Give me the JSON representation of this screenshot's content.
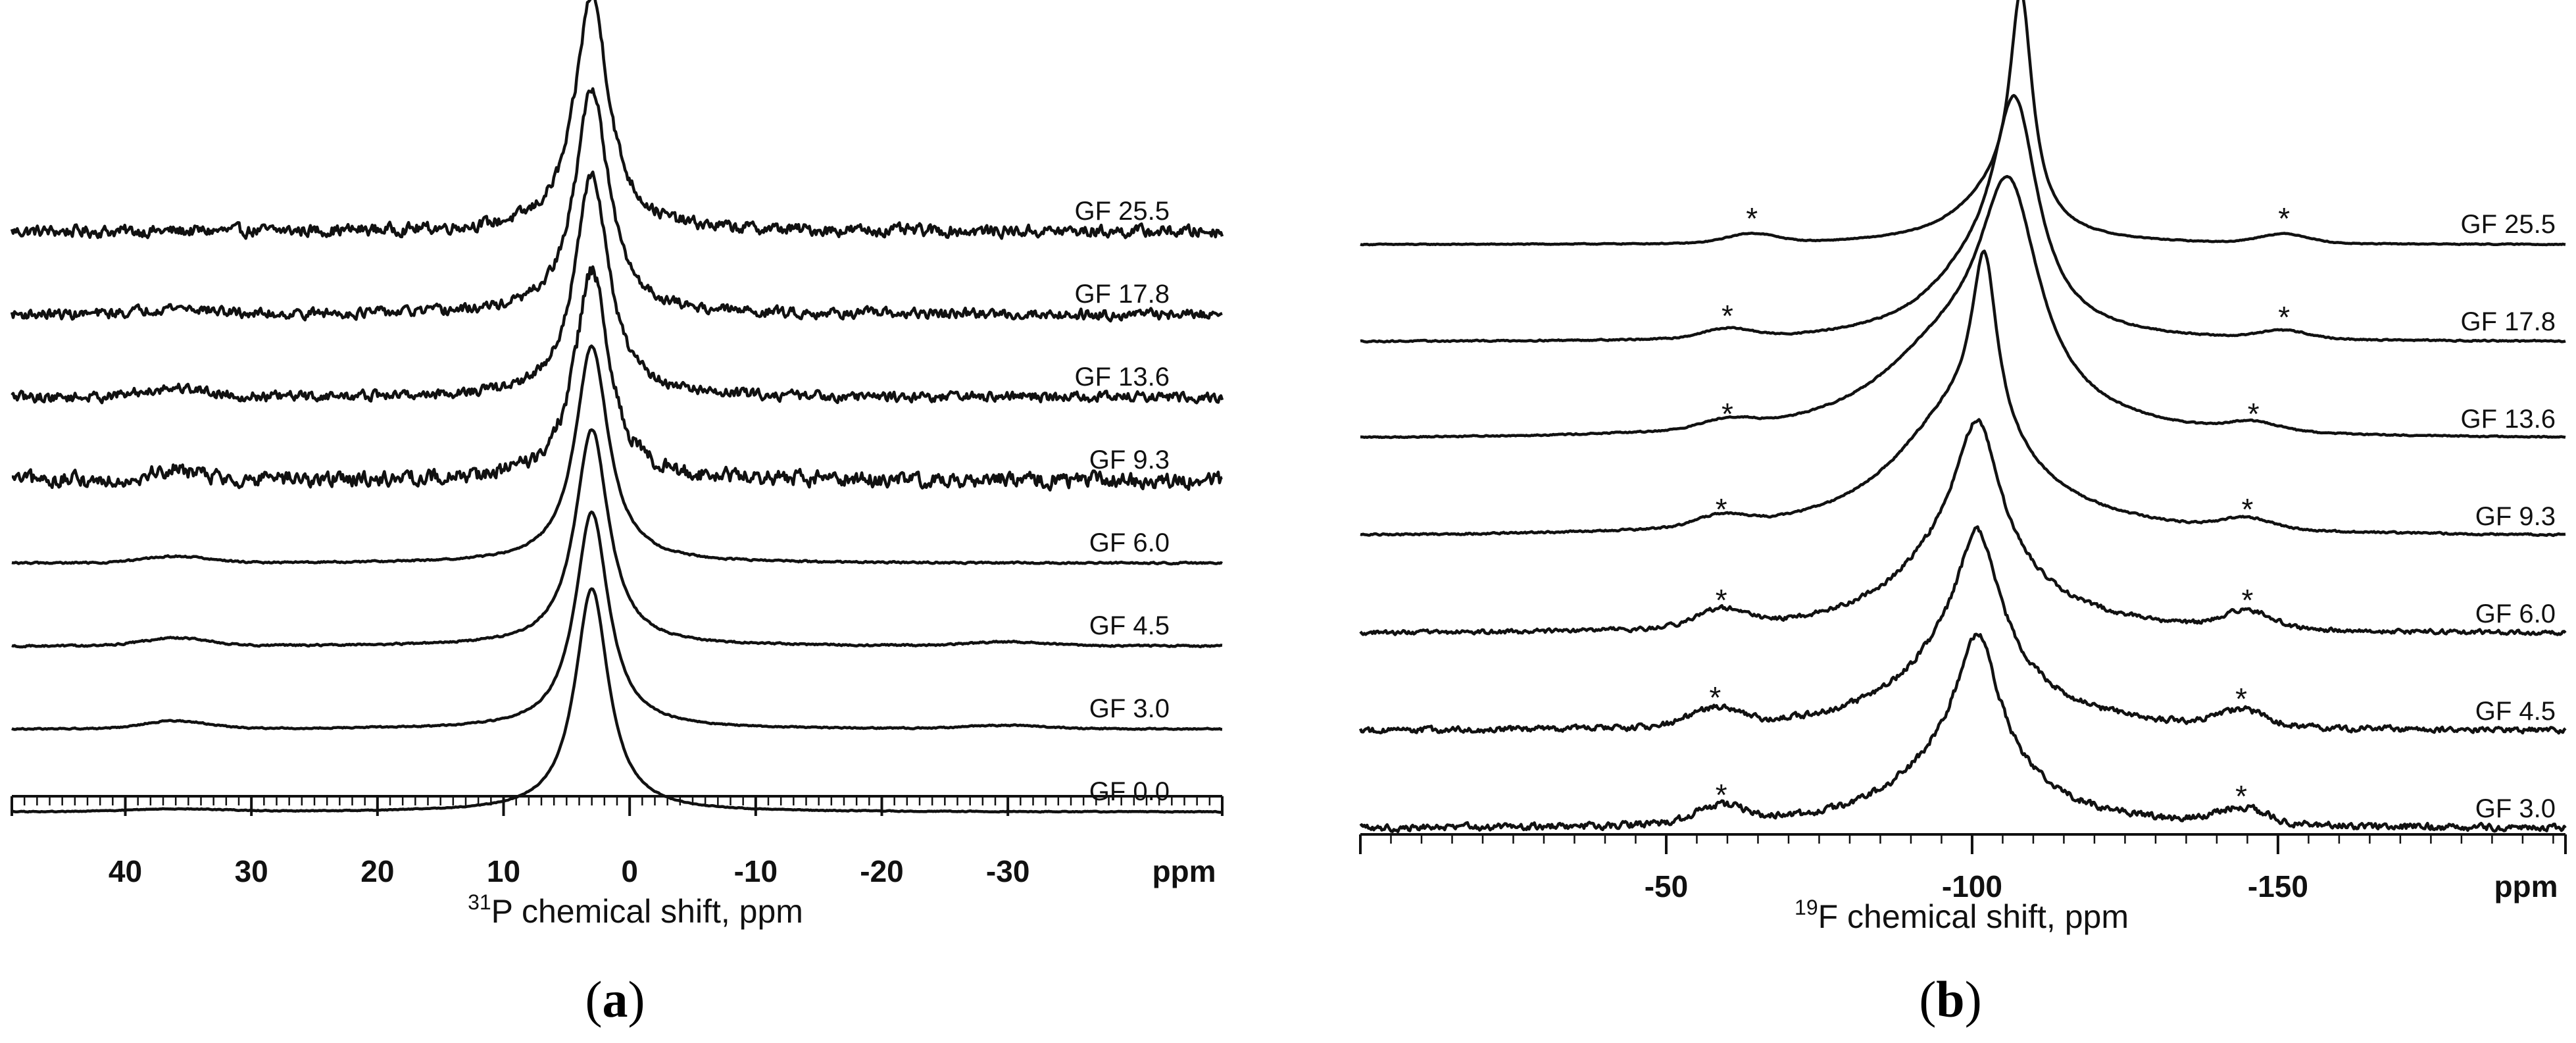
{
  "chart_data": [
    {
      "type": "line",
      "panel_label": "(a)",
      "nucleus_sup": "31",
      "xlabel_rest": "P chemical shift, ppm",
      "unit_label": "ppm",
      "xlim": [
        49,
        -47
      ],
      "ticks": [
        40,
        30,
        20,
        10,
        0,
        -10,
        -20,
        -30
      ],
      "minor_step": 1,
      "series": [
        {
          "name": "GF 25.5",
          "peak": 3,
          "width": 1.6,
          "amp": 360,
          "noise": 14,
          "bumps": []
        },
        {
          "name": "GF 17.8",
          "peak": 3,
          "width": 1.6,
          "amp": 345,
          "noise": 12,
          "bumps": [
            {
              "x": 36,
              "a": 10,
              "w": 2.5
            }
          ]
        },
        {
          "name": "GF 13.6",
          "peak": 3,
          "width": 1.6,
          "amp": 340,
          "noise": 12,
          "bumps": [
            {
              "x": 36,
              "a": 14,
              "w": 2.5
            }
          ]
        },
        {
          "name": "GF 9.3",
          "peak": 3,
          "width": 1.6,
          "amp": 320,
          "noise": 18,
          "bumps": [
            {
              "x": 36,
              "a": 16,
              "w": 2
            }
          ]
        },
        {
          "name": "GF 6.0",
          "peak": 3,
          "width": 1.6,
          "amp": 330,
          "noise": 2,
          "bumps": [
            {
              "x": 36,
              "a": 10,
              "w": 2.5
            }
          ]
        },
        {
          "name": "GF 4.5",
          "peak": 3,
          "width": 1.6,
          "amp": 330,
          "noise": 2,
          "bumps": [
            {
              "x": 36,
              "a": 12,
              "w": 2.5
            },
            {
              "x": -30,
              "a": 6,
              "w": 3
            }
          ]
        },
        {
          "name": "GF 3.0",
          "peak": 3,
          "width": 1.6,
          "amp": 330,
          "noise": 1.5,
          "bumps": [
            {
              "x": 36,
              "a": 12,
              "w": 2.5
            },
            {
              "x": -30,
              "a": 5,
              "w": 3
            }
          ]
        },
        {
          "name": "GF 0.0",
          "peak": 3,
          "width": 1.6,
          "amp": 340,
          "noise": 1,
          "bumps": [
            {
              "x": 36,
              "a": 4,
              "w": 4
            }
          ]
        }
      ]
    },
    {
      "type": "line",
      "panel_label": "(b)",
      "nucleus_sup": "19",
      "xlabel_rest": "F chemical shift, ppm",
      "unit_label": "ppm",
      "xlim": [
        0,
        -197
      ],
      "ticks": [
        -50,
        -100,
        -150
      ],
      "minor_step": 5,
      "spinning_sideband_marker": "*",
      "series": [
        {
          "name": "GF 25.5",
          "peak": -108,
          "width": 2.2,
          "amp": 330,
          "broad": {
            "x": -104,
            "a": 70,
            "w": 8
          },
          "noise": 1,
          "sidebands": [
            {
              "x": -64,
              "a": 14
            },
            {
              "x": -151,
              "a": 14
            }
          ]
        },
        {
          "name": "GF 17.8",
          "peak": -107,
          "width": 4.5,
          "amp": 320,
          "broad": {
            "x": -100,
            "a": 80,
            "w": 10
          },
          "noise": 1.5,
          "sidebands": [
            {
              "x": -60,
              "a": 14
            },
            {
              "x": -151,
              "a": 12
            }
          ]
        },
        {
          "name": "GF 13.6",
          "peak": -106,
          "width": 6,
          "amp": 320,
          "broad": {
            "x": -96,
            "a": 120,
            "w": 14
          },
          "noise": 1.5,
          "sidebands": [
            {
              "x": -60,
              "a": 13
            },
            {
              "x": -146,
              "a": 13
            }
          ]
        },
        {
          "name": "GF 9.3",
          "peak": -102,
          "width": 2.5,
          "amp": 260,
          "broad": {
            "x": -98,
            "a": 190,
            "w": 13
          },
          "noise": 2,
          "sidebands": [
            {
              "x": -59,
              "a": 16
            },
            {
              "x": -145,
              "a": 16
            }
          ]
        },
        {
          "name": "GF 6.0",
          "peak": -101,
          "width": 4,
          "amp": 180,
          "broad": {
            "x": -99,
            "a": 150,
            "w": 12
          },
          "noise": 5,
          "sidebands": [
            {
              "x": -59,
              "a": 26
            },
            {
              "x": -145,
              "a": 26
            }
          ]
        },
        {
          "name": "GF 4.5",
          "peak": -101,
          "width": 4,
          "amp": 180,
          "broad": {
            "x": -99,
            "a": 130,
            "w": 12
          },
          "noise": 7,
          "sidebands": [
            {
              "x": -58,
              "a": 26
            },
            {
              "x": -144,
              "a": 24
            }
          ]
        },
        {
          "name": "GF 3.0",
          "peak": -101,
          "width": 4,
          "amp": 180,
          "broad": {
            "x": -99,
            "a": 120,
            "w": 12
          },
          "noise": 8,
          "sidebands": [
            {
              "x": -59,
              "a": 26
            },
            {
              "x": -144,
              "a": 24
            }
          ]
        }
      ]
    }
  ]
}
